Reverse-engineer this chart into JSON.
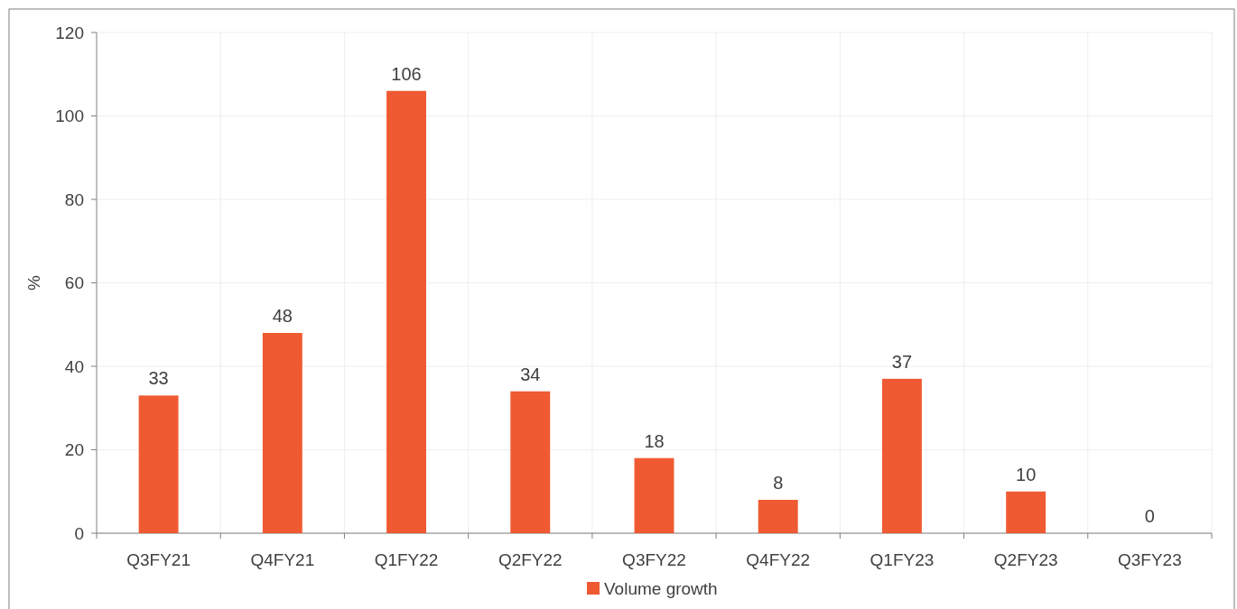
{
  "chart_data": {
    "type": "bar",
    "ylabel": "%",
    "categories": [
      "Q3FY21",
      "Q4FY21",
      "Q1FY22",
      "Q2FY22",
      "Q3FY22",
      "Q4FY22",
      "Q1FY23",
      "Q2FY23",
      "Q3FY23"
    ],
    "series": [
      {
        "name": "Volume growth",
        "color": "#f05a32",
        "values": [
          33,
          48,
          106,
          34,
          18,
          8,
          37,
          10,
          0
        ]
      }
    ],
    "ylim": [
      0,
      120
    ],
    "yticks": [
      0,
      20,
      40,
      60,
      80,
      100,
      120
    ],
    "grid": true,
    "legend": "bottom",
    "data_labels": true
  }
}
